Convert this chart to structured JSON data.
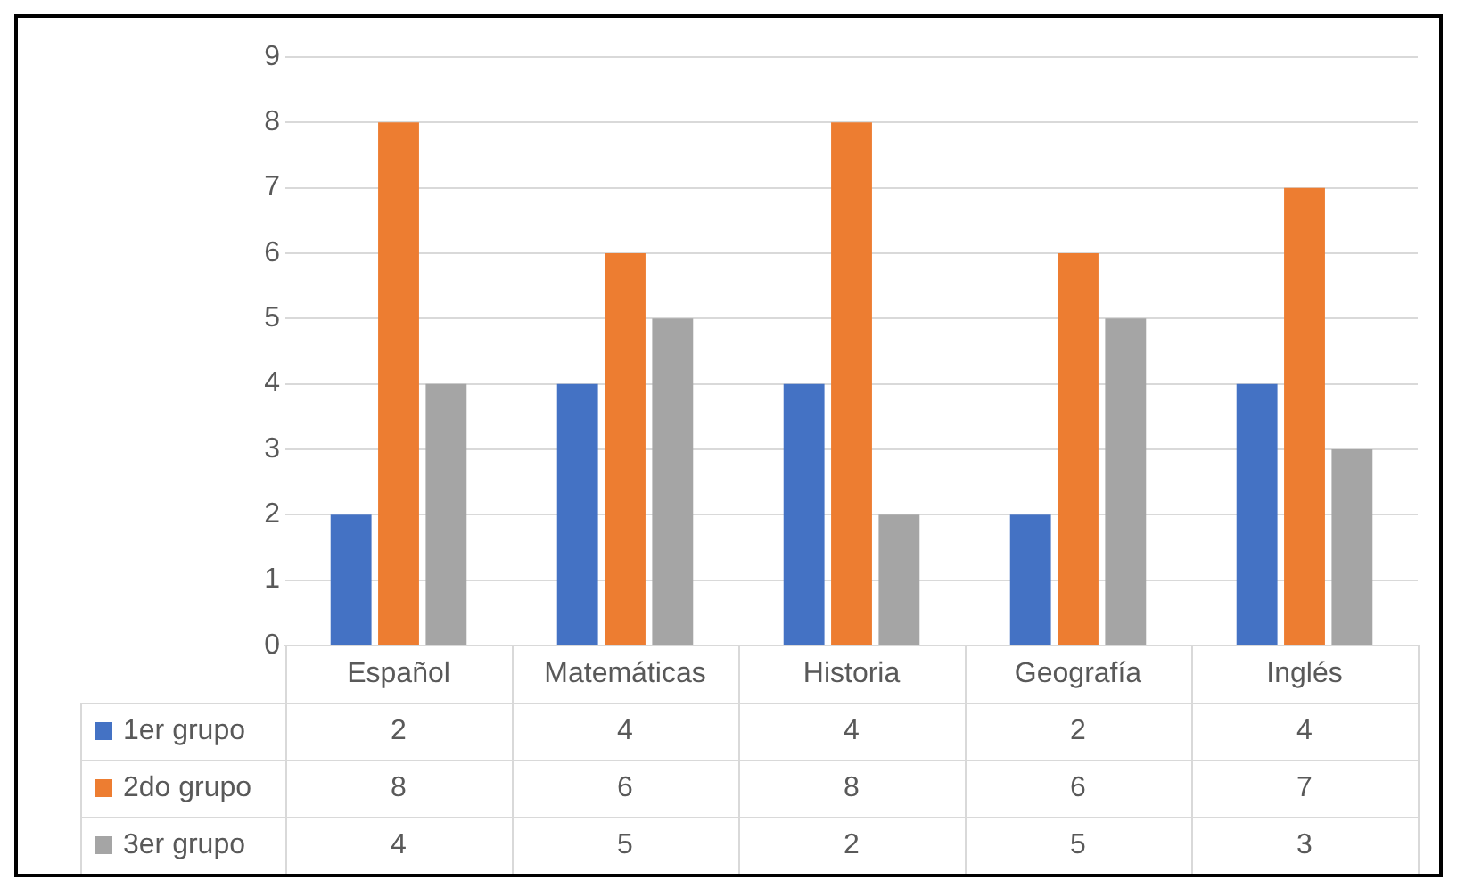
{
  "chart_data": {
    "type": "bar",
    "categories": [
      "Español",
      "Matemáticas",
      "Historia",
      "Geografía",
      "Inglés"
    ],
    "series": [
      {
        "name": "1er grupo",
        "color": "#4472c4",
        "values": [
          2,
          4,
          4,
          2,
          4
        ]
      },
      {
        "name": "2do grupo",
        "color": "#ed7d31",
        "values": [
          8,
          6,
          8,
          6,
          7
        ]
      },
      {
        "name": "3er grupo",
        "color": "#a5a5a5",
        "values": [
          4,
          5,
          2,
          5,
          3
        ]
      }
    ],
    "ylim": [
      0,
      9
    ],
    "yticks": [
      0,
      1,
      2,
      3,
      4,
      5,
      6,
      7,
      8,
      9
    ],
    "grid": "y",
    "legend": "bottom",
    "data_labels": true
  }
}
